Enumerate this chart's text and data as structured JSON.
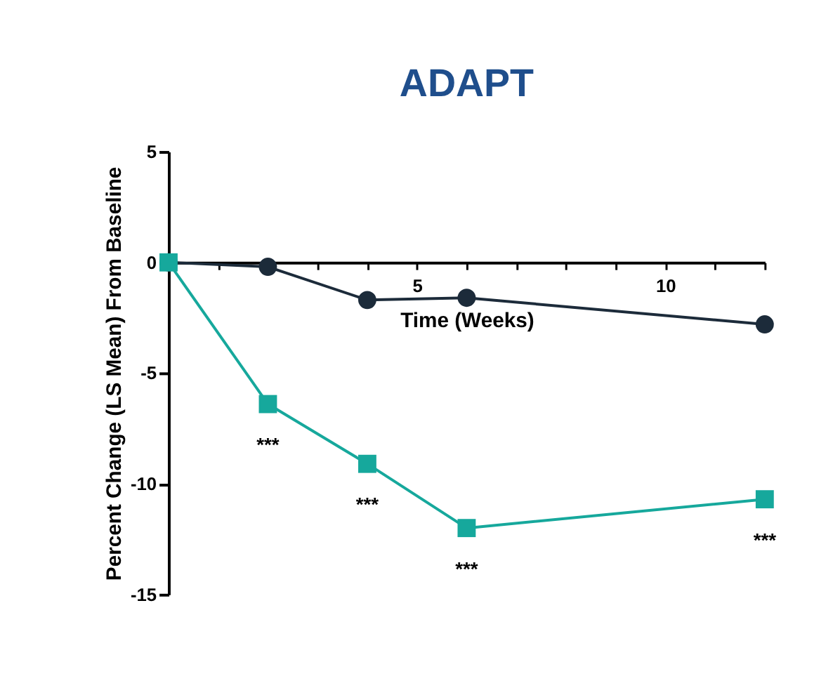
{
  "chart_data": {
    "type": "line",
    "title": "ADAPT",
    "xlabel": "Time (Weeks)",
    "ylabel": "Percent Change (LS Mean) From Baseline",
    "x": [
      0,
      2,
      4,
      6,
      12
    ],
    "series": [
      {
        "color": "#1c2b3a",
        "marker": "circle",
        "values": [
          0,
          -0.2,
          -1.7,
          -1.6,
          -2.8
        ]
      },
      {
        "color": "#16a89c",
        "marker": "square",
        "values": [
          0,
          -6.4,
          -9.1,
          -12.0,
          -10.7
        ]
      }
    ],
    "xlim": [
      0,
      12
    ],
    "xticks": [
      {
        "value": 1,
        "label": null
      },
      {
        "value": 2,
        "label": null
      },
      {
        "value": 3,
        "label": null
      },
      {
        "value": 4,
        "label": null
      },
      5,
      {
        "value": 6,
        "label": null
      },
      {
        "value": 7,
        "label": null
      },
      {
        "value": 8,
        "label": null
      },
      {
        "value": 9,
        "label": null
      },
      10,
      {
        "value": 11,
        "label": null
      },
      {
        "value": 12,
        "label": null
      }
    ],
    "ylim": [
      -15,
      5
    ],
    "yticks": [
      5,
      0,
      -5,
      -10,
      -15
    ],
    "annotations": [
      {
        "text": "***",
        "x": 2,
        "y": -6.4
      },
      {
        "text": "***",
        "x": 4,
        "y": -9.1
      },
      {
        "text": "***",
        "x": 6,
        "y": -12.0
      },
      {
        "text": "***",
        "x": 12,
        "y": -10.7
      }
    ],
    "grid": false,
    "legend": false
  }
}
